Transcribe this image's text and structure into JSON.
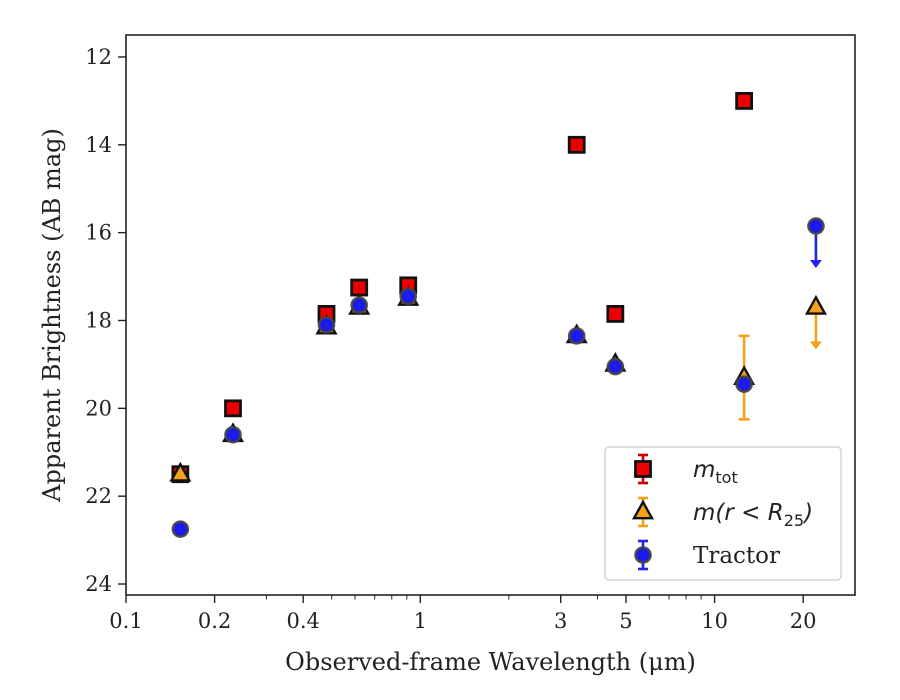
{
  "chart_data": {
    "type": "scatter",
    "xlabel": "Observed-frame Wavelength (μm)",
    "ylabel": "Apparent Brightness (AB mag)",
    "xscale": "log",
    "xlim": [
      0.1,
      30
    ],
    "ylim": [
      24.25,
      11.5
    ],
    "y_inverted": true,
    "x_ticks": [
      0.1,
      0.2,
      0.4,
      1,
      3,
      5,
      10,
      20
    ],
    "x_tick_labels": [
      "0.1",
      "0.2",
      "0.4",
      "1",
      "3",
      "5",
      "10",
      "20"
    ],
    "y_ticks": [
      12,
      14,
      16,
      18,
      20,
      22,
      24
    ],
    "y_tick_labels": [
      "12",
      "14",
      "16",
      "18",
      "20",
      "22",
      "24"
    ],
    "grid": false,
    "legend_position": "lower-right",
    "series": [
      {
        "name": "m_tot",
        "legend_main": "m",
        "legend_sub": "tot",
        "marker": "square",
        "color": "#ee0000",
        "edge_color": "#111111",
        "points": [
          {
            "x": 0.153,
            "y": 21.5
          },
          {
            "x": 0.231,
            "y": 20.0
          },
          {
            "x": 0.48,
            "y": 17.85
          },
          {
            "x": 0.62,
            "y": 17.25
          },
          {
            "x": 0.91,
            "y": 17.2
          },
          {
            "x": 3.4,
            "y": 14.0
          },
          {
            "x": 4.6,
            "y": 17.85
          },
          {
            "x": 12.6,
            "y": 13.0
          }
        ]
      },
      {
        "name": "m(r<R_25)",
        "legend_main": "m(r < R",
        "legend_sub": "25",
        "legend_tail": ")",
        "marker": "triangle",
        "color": "#f5a21a",
        "edge_color": "#111111",
        "points": [
          {
            "x": 0.153,
            "y": 21.5
          },
          {
            "x": 0.231,
            "y": 20.6
          },
          {
            "x": 0.48,
            "y": 18.15
          },
          {
            "x": 0.62,
            "y": 17.7
          },
          {
            "x": 0.91,
            "y": 17.5
          },
          {
            "x": 3.4,
            "y": 18.35
          },
          {
            "x": 4.6,
            "y": 19.0
          },
          {
            "x": 12.6,
            "y": 19.3,
            "err": [
              0.95,
              0.95
            ]
          },
          {
            "x": 22.1,
            "y": 17.7,
            "upper_limit": true
          }
        ]
      },
      {
        "name": "Tractor",
        "legend_main": "Tractor",
        "marker": "circle",
        "color": "#1a1aee",
        "edge_color": "#444444",
        "points": [
          {
            "x": 0.153,
            "y": 22.75
          },
          {
            "x": 0.231,
            "y": 20.6
          },
          {
            "x": 0.48,
            "y": 18.1
          },
          {
            "x": 0.62,
            "y": 17.65
          },
          {
            "x": 0.91,
            "y": 17.45
          },
          {
            "x": 3.4,
            "y": 18.35
          },
          {
            "x": 4.6,
            "y": 19.05
          },
          {
            "x": 12.6,
            "y": 19.45
          },
          {
            "x": 22.1,
            "y": 15.85,
            "upper_limit": true
          }
        ]
      }
    ]
  }
}
